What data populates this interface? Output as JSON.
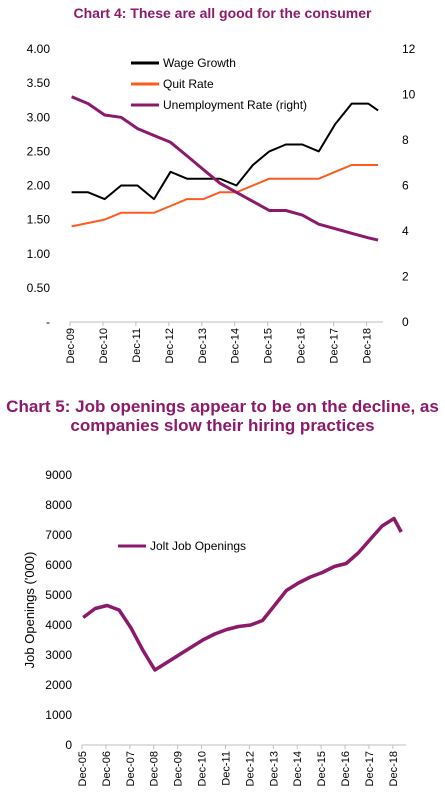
{
  "chart_data": [
    {
      "type": "line",
      "title": "Chart 4: These are all good for the consumer",
      "x_tick_labels": [
        "Dec-09",
        "Dec-10",
        "Dec-11",
        "Dec-12",
        "Dec-13",
        "Dec-14",
        "Dec-15",
        "Dec-16",
        "Dec-17",
        "Dec-18"
      ],
      "left_axis": {
        "ticks": [
          "4.00",
          "3.50",
          "3.00",
          "2.50",
          "2.00",
          "1.50",
          "1.00",
          "0.50",
          "-"
        ],
        "ylim": [
          0,
          4
        ]
      },
      "right_axis": {
        "ticks": [
          "12",
          "10",
          "8",
          "6",
          "4",
          "2",
          "0"
        ],
        "ylim": [
          0,
          12
        ]
      },
      "legend_position": "top-left",
      "grid": false,
      "series": [
        {
          "name": "Wage Growth",
          "axis": "left",
          "color": "#000000",
          "x": [
            2010.0,
            2010.5,
            2011.0,
            2011.5,
            2012.0,
            2012.5,
            2013.0,
            2013.5,
            2014.0,
            2014.5,
            2015.0,
            2015.5,
            2016.0,
            2016.5,
            2017.0,
            2017.5,
            2018.0,
            2018.5,
            2019.0,
            2019.3
          ],
          "y": [
            1.9,
            1.9,
            1.8,
            2.0,
            2.0,
            1.8,
            2.2,
            2.1,
            2.1,
            2.1,
            2.0,
            2.3,
            2.5,
            2.6,
            2.6,
            2.5,
            2.9,
            3.2,
            3.2,
            3.1
          ]
        },
        {
          "name": "Quit Rate",
          "axis": "left",
          "color": "#ff5a1f",
          "x": [
            2010.0,
            2011.0,
            2011.5,
            2012.0,
            2012.5,
            2013.0,
            2013.5,
            2014.0,
            2014.5,
            2015.0,
            2015.5,
            2016.0,
            2016.5,
            2017.0,
            2017.5,
            2018.0,
            2018.5,
            2019.0,
            2019.3
          ],
          "y": [
            1.4,
            1.5,
            1.6,
            1.6,
            1.6,
            1.7,
            1.8,
            1.8,
            1.9,
            1.9,
            2.0,
            2.1,
            2.1,
            2.1,
            2.1,
            2.2,
            2.3,
            2.3,
            2.3
          ]
        },
        {
          "name": "Unemployment Rate (right)",
          "axis": "right",
          "color": "#8b1a6b",
          "x": [
            2010.0,
            2010.5,
            2011.0,
            2011.5,
            2012.0,
            2012.5,
            2013.0,
            2013.5,
            2014.0,
            2014.5,
            2015.0,
            2015.5,
            2016.0,
            2016.5,
            2017.0,
            2017.5,
            2018.0,
            2018.5,
            2019.0,
            2019.3
          ],
          "y": [
            9.9,
            9.6,
            9.1,
            9.0,
            8.5,
            8.2,
            7.9,
            7.3,
            6.7,
            6.1,
            5.7,
            5.3,
            4.9,
            4.9,
            4.7,
            4.3,
            4.1,
            3.9,
            3.7,
            3.6
          ]
        }
      ]
    },
    {
      "type": "line",
      "title": "Chart 5: Job openings appear to be on the decline, as companies slow their hiring practices",
      "ylabel": "Job Openings ('000)",
      "x_tick_labels": [
        "Dec-05",
        "Dec-06",
        "Dec-07",
        "Dec-08",
        "Dec-09",
        "Dec-10",
        "Dec-11",
        "Dec-12",
        "Dec-13",
        "Dec-14",
        "Dec-15",
        "Dec-16",
        "Dec-17",
        "Dec-18"
      ],
      "y_ticks": [
        "9000",
        "8000",
        "7000",
        "6000",
        "5000",
        "4000",
        "3000",
        "2000",
        "1000",
        "0"
      ],
      "ylim": [
        0,
        9000
      ],
      "legend_position": "upper-left",
      "grid": false,
      "series": [
        {
          "name": "Jolt Job Openings",
          "color": "#8b1a6b",
          "x": [
            2006.0,
            2006.5,
            2007.0,
            2007.5,
            2008.0,
            2008.5,
            2009.0,
            2009.5,
            2010.0,
            2010.5,
            2011.0,
            2011.5,
            2012.0,
            2012.5,
            2013.0,
            2013.5,
            2014.0,
            2014.5,
            2015.0,
            2015.5,
            2016.0,
            2016.5,
            2017.0,
            2017.5,
            2018.0,
            2018.5,
            2019.0,
            2019.3
          ],
          "y": [
            4250,
            4550,
            4650,
            4500,
            3900,
            3150,
            2500,
            2750,
            3000,
            3250,
            3500,
            3700,
            3850,
            3950,
            4000,
            4150,
            4650,
            5150,
            5400,
            5600,
            5750,
            5950,
            6050,
            6400,
            6850,
            7300,
            7550,
            7100
          ]
        }
      ]
    }
  ]
}
